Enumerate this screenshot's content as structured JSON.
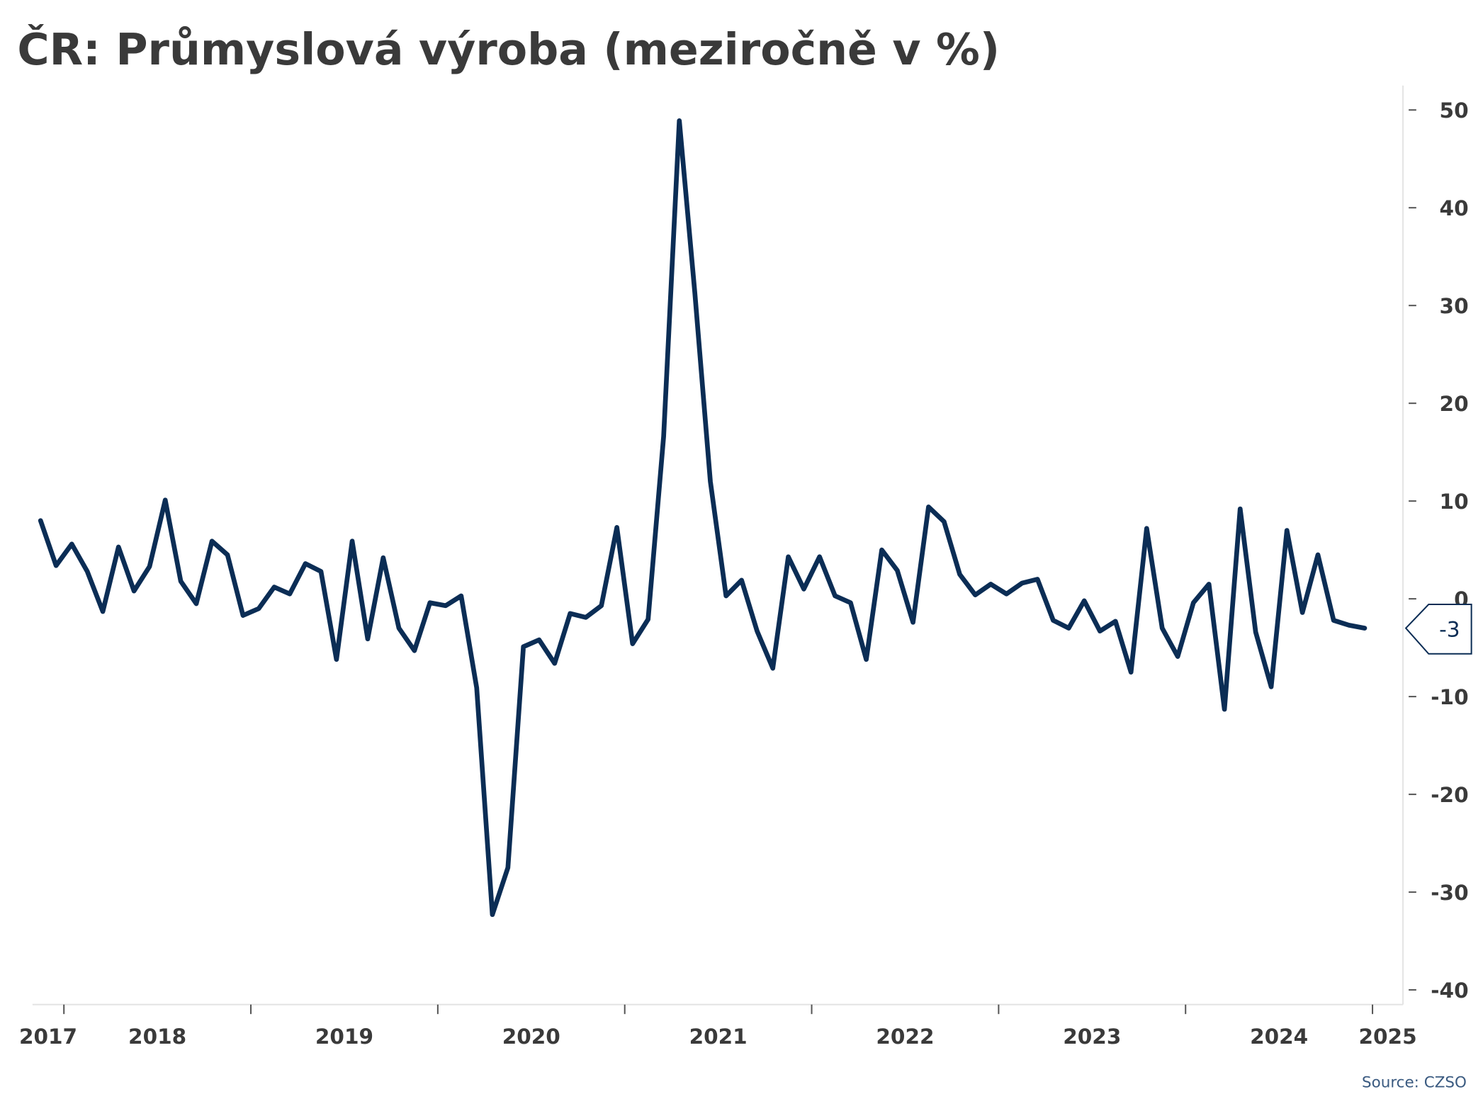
{
  "chart_data": {
    "type": "line",
    "title": "ČR: Průmyslová výroba (meziročně v %)",
    "source": "Source: CZSO",
    "x": [
      2017.875,
      2017.958,
      2018.042,
      2018.125,
      2018.208,
      2018.292,
      2018.375,
      2018.458,
      2018.542,
      2018.625,
      2018.708,
      2018.792,
      2018.875,
      2018.958,
      2019.042,
      2019.125,
      2019.208,
      2019.292,
      2019.375,
      2019.458,
      2019.542,
      2019.625,
      2019.708,
      2019.792,
      2019.875,
      2019.958,
      2020.042,
      2020.125,
      2020.208,
      2020.292,
      2020.375,
      2020.458,
      2020.542,
      2020.625,
      2020.708,
      2020.792,
      2020.875,
      2020.958,
      2021.042,
      2021.125,
      2021.208,
      2021.292,
      2021.375,
      2021.458,
      2021.542,
      2021.625,
      2021.708,
      2021.792,
      2021.875,
      2021.958,
      2022.042,
      2022.125,
      2022.208,
      2022.292,
      2022.375,
      2022.458,
      2022.542,
      2022.625,
      2022.708,
      2022.792,
      2022.875,
      2022.958,
      2023.042,
      2023.125,
      2023.208,
      2023.292,
      2023.375,
      2023.458,
      2023.542,
      2023.625,
      2023.708,
      2023.792,
      2023.875,
      2023.958,
      2024.042,
      2024.125,
      2024.208,
      2024.292,
      2024.375,
      2024.458,
      2024.542,
      2024.625,
      2024.708,
      2024.792,
      2024.875,
      2024.958
    ],
    "series": [
      {
        "color": "#0b2d55",
        "values": [
          8.0,
          3.4,
          5.6,
          2.8,
          -1.3,
          5.3,
          0.8,
          3.3,
          10.1,
          1.8,
          -0.5,
          5.9,
          4.5,
          -1.7,
          -1.0,
          1.2,
          0.5,
          3.6,
          2.8,
          -6.2,
          5.9,
          -4.1,
          4.2,
          -3.0,
          -5.3,
          -0.4,
          -0.7,
          0.3,
          -9.1,
          -32.3,
          -27.5,
          -4.9,
          -4.2,
          -6.6,
          -1.5,
          -1.9,
          -0.7,
          7.3,
          -4.6,
          -2.1,
          16.6,
          48.9,
          31.3,
          12.0,
          0.3,
          1.9,
          -3.3,
          -7.1,
          4.3,
          1.0,
          4.3,
          0.3,
          -0.4,
          -6.2,
          5.0,
          2.9,
          -2.4,
          9.4,
          7.9,
          2.5,
          0.4,
          1.5,
          0.5,
          1.6,
          2.0,
          -2.2,
          -3.0,
          -0.2,
          -3.3,
          -2.3,
          -7.5,
          7.2,
          -3.0,
          -5.9,
          -0.4,
          1.5,
          -11.3,
          9.2,
          -3.4,
          -9.0,
          7.0,
          -1.4,
          4.5,
          -2.2,
          -2.7,
          -3
        ]
      }
    ],
    "xlim": [
      2017.832,
      2025.163
    ],
    "xticks": [
      2017,
      2018,
      2019,
      2020,
      2021,
      2022,
      2023,
      2024,
      2025
    ],
    "ylim": [
      -41.5,
      52.5
    ],
    "yticks": [
      50,
      40,
      30,
      20,
      10,
      0,
      -10,
      -20,
      -30,
      -40
    ],
    "y_axis_side": "right",
    "grid": false
  }
}
